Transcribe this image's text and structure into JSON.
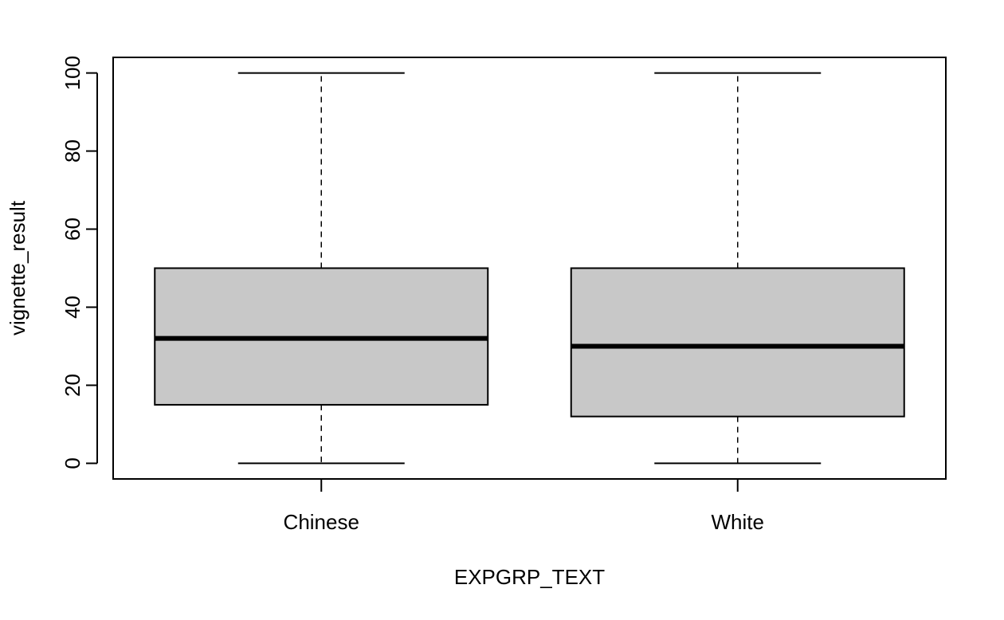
{
  "chart_data": {
    "type": "boxplot",
    "xlabel": "EXPGRP_TEXT",
    "ylabel": "vignette_result",
    "ylim": [
      -4,
      104
    ],
    "y_ticks": [
      0,
      20,
      40,
      60,
      80,
      100
    ],
    "grid": false,
    "categories": [
      "Chinese",
      "White"
    ],
    "series": [
      {
        "category": "Chinese",
        "min": 0,
        "q1": 15,
        "median": 32,
        "q3": 50,
        "max": 100
      },
      {
        "category": "White",
        "min": 0,
        "q1": 12,
        "median": 30,
        "q3": 50,
        "max": 100
      }
    ],
    "box_fill": "#c8c8c8",
    "line_color": "#000000"
  }
}
